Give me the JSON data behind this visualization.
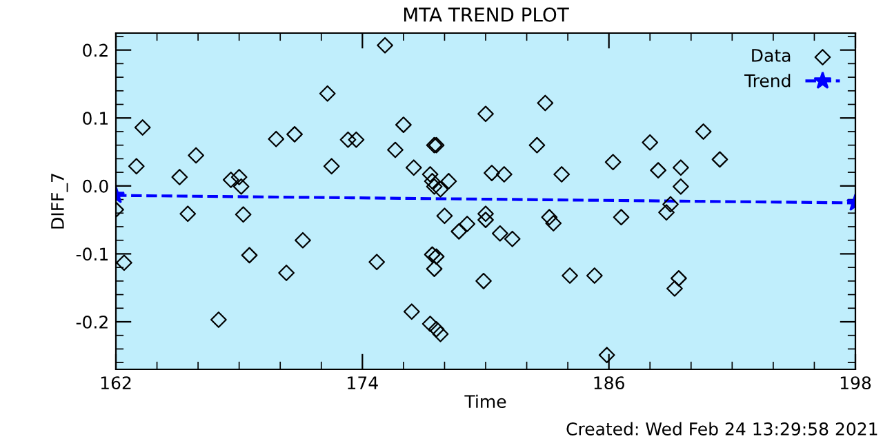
{
  "chart_data": {
    "type": "scatter",
    "title": "MTA TREND PLOT",
    "xlabel": "Time",
    "ylabel": "DIFF_7",
    "xlim": [
      162,
      198
    ],
    "xticks": [
      162,
      174,
      186,
      198
    ],
    "ylim": [
      -0.27,
      0.225
    ],
    "yticks": [
      {
        "value": -0.2,
        "label": "-0.2"
      },
      {
        "value": -0.1,
        "label": "-0.1"
      },
      {
        "value": 0.0,
        "label": "0.0"
      },
      {
        "value": 0.1,
        "label": "0.1"
      },
      {
        "value": 0.2,
        "label": "0.2"
      }
    ],
    "legend": "top right",
    "grid": false,
    "annotations": [
      "Created: Wed Feb 24 13:29:58 2021"
    ],
    "series": [
      {
        "name": "Data",
        "color": "#000000",
        "marker": "diamond",
        "x": [
          162.0,
          162.4,
          163.0,
          163.3,
          165.1,
          165.5,
          165.9,
          167.0,
          167.6,
          168.0,
          168.1,
          168.2,
          168.5,
          169.8,
          170.3,
          170.7,
          171.1,
          172.3,
          172.5,
          173.3,
          173.7,
          175.1,
          176.0,
          175.6,
          174.7,
          176.5,
          177.5,
          177.6,
          177.3,
          177.4,
          177.5,
          177.8,
          178.2,
          178.0,
          177.4,
          177.6,
          177.5,
          176.4,
          177.3,
          177.6,
          177.8,
          179.1,
          178.7,
          180.0,
          180.0,
          180.0,
          180.3,
          180.9,
          180.7,
          181.3,
          179.9,
          182.9,
          182.5,
          183.7,
          183.1,
          183.3,
          184.1,
          185.3,
          185.9,
          186.2,
          186.6,
          188.0,
          188.4,
          189.5,
          189.5,
          188.8,
          189.0,
          189.4,
          189.2,
          190.6,
          191.4
        ],
        "values": [
          -0.035,
          -0.113,
          0.029,
          0.086,
          0.013,
          -0.041,
          0.045,
          -0.197,
          0.009,
          0.013,
          -0.001,
          -0.042,
          -0.102,
          0.069,
          -0.128,
          0.076,
          -0.08,
          0.136,
          0.029,
          0.068,
          0.068,
          0.207,
          0.09,
          0.053,
          -0.112,
          0.027,
          0.06,
          0.06,
          0.017,
          0.007,
          -0.001,
          -0.005,
          0.007,
          -0.044,
          -0.101,
          -0.104,
          -0.122,
          -0.185,
          -0.203,
          -0.211,
          -0.218,
          -0.056,
          -0.067,
          -0.041,
          -0.05,
          0.106,
          0.019,
          0.017,
          -0.07,
          -0.078,
          -0.14,
          0.122,
          0.06,
          0.017,
          -0.046,
          -0.055,
          -0.132,
          -0.132,
          -0.249,
          0.035,
          -0.046,
          0.064,
          0.023,
          0.027,
          -0.001,
          -0.039,
          -0.027,
          -0.136,
          -0.151,
          0.08,
          0.039
        ]
      },
      {
        "name": "Trend",
        "type": "line",
        "color": "#0000ff",
        "marker": "star",
        "line_style": "dashed",
        "x": [
          162,
          198
        ],
        "values": [
          -0.014,
          -0.025
        ]
      }
    ]
  }
}
